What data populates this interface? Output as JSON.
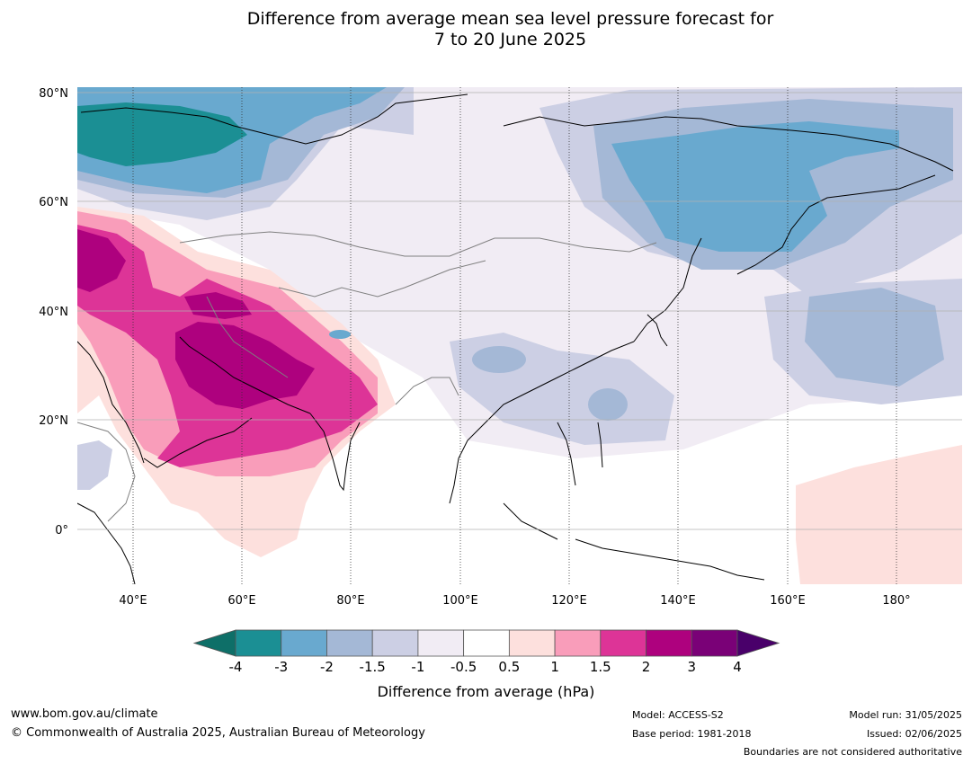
{
  "title": {
    "line1": "Difference from average mean sea level pressure forecast for",
    "line2": "7 to 20 June 2025"
  },
  "axes": {
    "lon_ticks": [
      "40°E",
      "60°E",
      "80°E",
      "100°E",
      "120°E",
      "140°E",
      "160°E",
      "180°"
    ],
    "lat_ticks": [
      "80°N",
      "60°N",
      "40°N",
      "20°N",
      "0°"
    ]
  },
  "colorbar": {
    "label": "Difference from average (hPa)",
    "ticks": [
      "-4",
      "-3",
      "-2",
      "-1.5",
      "-1",
      "-0.5",
      "0.5",
      "1",
      "1.5",
      "2",
      "3",
      "4"
    ],
    "colors": [
      "#0e6f68",
      "#1b8f94",
      "#69a9cf",
      "#a4b8d6",
      "#cccfe4",
      "#f1ecf4",
      "#ffffff",
      "#fde0dd",
      "#f99dba",
      "#dd3497",
      "#ae017e",
      "#7a0177",
      "#49006a"
    ]
  },
  "footer": {
    "url": "www.bom.gov.au/climate",
    "copyright": "© Commonwealth of Australia 2025, Australian Bureau of Meteorology",
    "model": "Model: ACCESS-S2",
    "base_period": "Base period: 1981-2018",
    "model_run": "Model run: 31/05/2025",
    "issued": "Issued: 02/06/2025",
    "disclaimer": "Boundaries are not considered authoritative"
  }
}
